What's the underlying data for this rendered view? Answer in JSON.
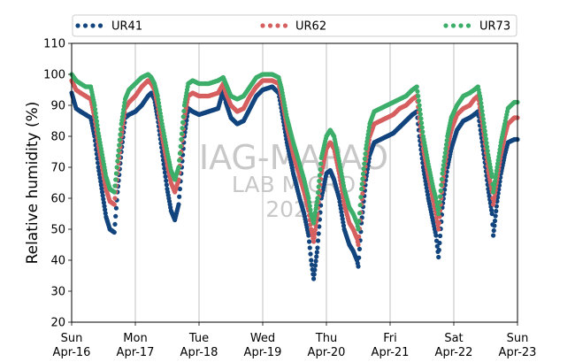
{
  "chart_data": {
    "type": "scatter",
    "ylabel": "Relative humidity (%)",
    "xlabel": "",
    "ylim": [
      20,
      110
    ],
    "yticks": [
      20,
      30,
      40,
      50,
      60,
      70,
      80,
      90,
      100,
      110
    ],
    "xlim": [
      0,
      7
    ],
    "xticks": [
      {
        "x": 0,
        "day": "Sun",
        "date": "Apr-16"
      },
      {
        "x": 1,
        "day": "Mon",
        "date": "Apr-17"
      },
      {
        "x": 2,
        "day": "Tue",
        "date": "Apr-18"
      },
      {
        "x": 3,
        "day": "Wed",
        "date": "Apr-19"
      },
      {
        "x": 4,
        "day": "Thu",
        "date": "Apr-20"
      },
      {
        "x": 5,
        "day": "Fri",
        "date": "Apr-21"
      },
      {
        "x": 6,
        "day": "Sat",
        "date": "Apr-22"
      },
      {
        "x": 7,
        "day": "Sun",
        "date": "Apr-23"
      }
    ],
    "grid": "vertical",
    "legend_position": "top",
    "watermark": [
      "IAG-MAPAO",
      "LAB MICRO",
      "2021"
    ],
    "series": [
      {
        "name": "UR41",
        "color": "#12457e",
        "points": [
          [
            0.0,
            94
          ],
          [
            0.07,
            89
          ],
          [
            0.14,
            88
          ],
          [
            0.22,
            87
          ],
          [
            0.3,
            86
          ],
          [
            0.36,
            80
          ],
          [
            0.42,
            70
          ],
          [
            0.48,
            62
          ],
          [
            0.54,
            54
          ],
          [
            0.6,
            50
          ],
          [
            0.67,
            49
          ],
          [
            0.72,
            62
          ],
          [
            0.78,
            75
          ],
          [
            0.84,
            86
          ],
          [
            0.9,
            87
          ],
          [
            1.0,
            88
          ],
          [
            1.1,
            90
          ],
          [
            1.2,
            93
          ],
          [
            1.25,
            94
          ],
          [
            1.3,
            92
          ],
          [
            1.35,
            86
          ],
          [
            1.42,
            75
          ],
          [
            1.5,
            63
          ],
          [
            1.56,
            56
          ],
          [
            1.62,
            53
          ],
          [
            1.68,
            58
          ],
          [
            1.72,
            68
          ],
          [
            1.77,
            80
          ],
          [
            1.83,
            89
          ],
          [
            1.9,
            88
          ],
          [
            2.0,
            87
          ],
          [
            2.15,
            88
          ],
          [
            2.3,
            89
          ],
          [
            2.38,
            95
          ],
          [
            2.42,
            91
          ],
          [
            2.5,
            86
          ],
          [
            2.6,
            84
          ],
          [
            2.7,
            85
          ],
          [
            2.8,
            89
          ],
          [
            2.9,
            93
          ],
          [
            3.0,
            95
          ],
          [
            3.15,
            96
          ],
          [
            3.25,
            94
          ],
          [
            3.3,
            88
          ],
          [
            3.38,
            78
          ],
          [
            3.48,
            68
          ],
          [
            3.58,
            60
          ],
          [
            3.65,
            55
          ],
          [
            3.72,
            48
          ],
          [
            3.76,
            40
          ],
          [
            3.8,
            34
          ],
          [
            3.86,
            44
          ],
          [
            3.92,
            60
          ],
          [
            4.0,
            68
          ],
          [
            4.06,
            69
          ],
          [
            4.12,
            66
          ],
          [
            4.2,
            60
          ],
          [
            4.28,
            50
          ],
          [
            4.36,
            45
          ],
          [
            4.42,
            43
          ],
          [
            4.48,
            40
          ],
          [
            4.5,
            38
          ],
          [
            4.55,
            52
          ],
          [
            4.62,
            66
          ],
          [
            4.68,
            74
          ],
          [
            4.75,
            78
          ],
          [
            4.85,
            79
          ],
          [
            4.95,
            80
          ],
          [
            5.05,
            81
          ],
          [
            5.15,
            83
          ],
          [
            5.25,
            85
          ],
          [
            5.35,
            87
          ],
          [
            5.42,
            88
          ],
          [
            5.46,
            80
          ],
          [
            5.52,
            70
          ],
          [
            5.6,
            60
          ],
          [
            5.68,
            52
          ],
          [
            5.72,
            48
          ],
          [
            5.76,
            41
          ],
          [
            5.82,
            57
          ],
          [
            5.9,
            70
          ],
          [
            5.96,
            76
          ],
          [
            6.05,
            82
          ],
          [
            6.15,
            85
          ],
          [
            6.25,
            86
          ],
          [
            6.32,
            87
          ],
          [
            6.38,
            88
          ],
          [
            6.42,
            82
          ],
          [
            6.48,
            73
          ],
          [
            6.54,
            63
          ],
          [
            6.6,
            55
          ],
          [
            6.62,
            48
          ],
          [
            6.68,
            59
          ],
          [
            6.74,
            68
          ],
          [
            6.8,
            74
          ],
          [
            6.85,
            78
          ],
          [
            6.95,
            79
          ],
          [
            7.0,
            79
          ]
        ]
      },
      {
        "name": "UR62",
        "color": "#d65f5f",
        "points": [
          [
            0.0,
            98
          ],
          [
            0.07,
            95
          ],
          [
            0.14,
            94
          ],
          [
            0.22,
            93
          ],
          [
            0.3,
            92
          ],
          [
            0.36,
            86
          ],
          [
            0.42,
            77
          ],
          [
            0.48,
            70
          ],
          [
            0.54,
            63
          ],
          [
            0.6,
            59
          ],
          [
            0.67,
            58
          ],
          [
            0.72,
            68
          ],
          [
            0.78,
            80
          ],
          [
            0.84,
            89
          ],
          [
            0.9,
            91
          ],
          [
            1.0,
            93
          ],
          [
            1.1,
            96
          ],
          [
            1.2,
            98
          ],
          [
            1.25,
            97
          ],
          [
            1.3,
            95
          ],
          [
            1.35,
            90
          ],
          [
            1.42,
            80
          ],
          [
            1.5,
            71
          ],
          [
            1.56,
            65
          ],
          [
            1.62,
            62
          ],
          [
            1.68,
            66
          ],
          [
            1.72,
            75
          ],
          [
            1.77,
            86
          ],
          [
            1.83,
            93
          ],
          [
            1.9,
            94
          ],
          [
            2.0,
            93
          ],
          [
            2.15,
            93
          ],
          [
            2.3,
            94
          ],
          [
            2.38,
            97
          ],
          [
            2.42,
            94
          ],
          [
            2.5,
            90
          ],
          [
            2.6,
            88
          ],
          [
            2.7,
            89
          ],
          [
            2.8,
            93
          ],
          [
            2.9,
            96
          ],
          [
            3.0,
            98
          ],
          [
            3.15,
            98
          ],
          [
            3.25,
            97
          ],
          [
            3.3,
            92
          ],
          [
            3.38,
            83
          ],
          [
            3.48,
            74
          ],
          [
            3.58,
            67
          ],
          [
            3.65,
            62
          ],
          [
            3.72,
            56
          ],
          [
            3.76,
            50
          ],
          [
            3.8,
            46
          ],
          [
            3.86,
            55
          ],
          [
            3.92,
            68
          ],
          [
            4.0,
            76
          ],
          [
            4.06,
            78
          ],
          [
            4.12,
            76
          ],
          [
            4.2,
            68
          ],
          [
            4.28,
            58
          ],
          [
            4.36,
            52
          ],
          [
            4.42,
            50
          ],
          [
            4.48,
            47
          ],
          [
            4.5,
            45
          ],
          [
            4.55,
            58
          ],
          [
            4.62,
            72
          ],
          [
            4.68,
            80
          ],
          [
            4.75,
            84
          ],
          [
            4.85,
            85
          ],
          [
            4.95,
            86
          ],
          [
            5.05,
            87
          ],
          [
            5.15,
            89
          ],
          [
            5.25,
            90
          ],
          [
            5.35,
            92
          ],
          [
            5.42,
            93
          ],
          [
            5.46,
            86
          ],
          [
            5.52,
            76
          ],
          [
            5.6,
            67
          ],
          [
            5.68,
            59
          ],
          [
            5.72,
            55
          ],
          [
            5.76,
            50
          ],
          [
            5.82,
            64
          ],
          [
            5.9,
            76
          ],
          [
            5.96,
            82
          ],
          [
            6.05,
            87
          ],
          [
            6.15,
            89
          ],
          [
            6.25,
            90
          ],
          [
            6.32,
            92
          ],
          [
            6.38,
            93
          ],
          [
            6.42,
            88
          ],
          [
            6.48,
            79
          ],
          [
            6.54,
            69
          ],
          [
            6.6,
            62
          ],
          [
            6.62,
            58
          ],
          [
            6.68,
            66
          ],
          [
            6.74,
            74
          ],
          [
            6.8,
            80
          ],
          [
            6.85,
            84
          ],
          [
            6.95,
            86
          ],
          [
            7.0,
            86
          ]
        ]
      },
      {
        "name": "UR73",
        "color": "#3cae6a",
        "points": [
          [
            0.0,
            100
          ],
          [
            0.07,
            98
          ],
          [
            0.14,
            97
          ],
          [
            0.22,
            96
          ],
          [
            0.3,
            96
          ],
          [
            0.36,
            90
          ],
          [
            0.42,
            81
          ],
          [
            0.48,
            74
          ],
          [
            0.54,
            67
          ],
          [
            0.6,
            63
          ],
          [
            0.67,
            62
          ],
          [
            0.72,
            72
          ],
          [
            0.78,
            84
          ],
          [
            0.84,
            92
          ],
          [
            0.9,
            95
          ],
          [
            1.0,
            97
          ],
          [
            1.1,
            99
          ],
          [
            1.2,
            100
          ],
          [
            1.25,
            99
          ],
          [
            1.3,
            97
          ],
          [
            1.35,
            93
          ],
          [
            1.42,
            84
          ],
          [
            1.5,
            75
          ],
          [
            1.56,
            69
          ],
          [
            1.62,
            66
          ],
          [
            1.68,
            70
          ],
          [
            1.72,
            79
          ],
          [
            1.77,
            90
          ],
          [
            1.83,
            97
          ],
          [
            1.9,
            98
          ],
          [
            2.0,
            97
          ],
          [
            2.15,
            97
          ],
          [
            2.3,
            98
          ],
          [
            2.38,
            99
          ],
          [
            2.42,
            97
          ],
          [
            2.5,
            93
          ],
          [
            2.6,
            92
          ],
          [
            2.7,
            93
          ],
          [
            2.8,
            96
          ],
          [
            2.9,
            99
          ],
          [
            3.0,
            100
          ],
          [
            3.15,
            100
          ],
          [
            3.25,
            99
          ],
          [
            3.3,
            95
          ],
          [
            3.38,
            86
          ],
          [
            3.48,
            78
          ],
          [
            3.58,
            71
          ],
          [
            3.65,
            66
          ],
          [
            3.72,
            60
          ],
          [
            3.76,
            55
          ],
          [
            3.8,
            52
          ],
          [
            3.86,
            60
          ],
          [
            3.92,
            73
          ],
          [
            4.0,
            80
          ],
          [
            4.06,
            82
          ],
          [
            4.12,
            80
          ],
          [
            4.2,
            72
          ],
          [
            4.28,
            63
          ],
          [
            4.36,
            57
          ],
          [
            4.42,
            55
          ],
          [
            4.48,
            52
          ],
          [
            4.5,
            50
          ],
          [
            4.55,
            63
          ],
          [
            4.62,
            76
          ],
          [
            4.68,
            84
          ],
          [
            4.75,
            88
          ],
          [
            4.85,
            89
          ],
          [
            4.95,
            90
          ],
          [
            5.05,
            91
          ],
          [
            5.15,
            92
          ],
          [
            5.25,
            93
          ],
          [
            5.35,
            95
          ],
          [
            5.42,
            96
          ],
          [
            5.46,
            90
          ],
          [
            5.52,
            80
          ],
          [
            5.6,
            71
          ],
          [
            5.68,
            63
          ],
          [
            5.72,
            60
          ],
          [
            5.76,
            55
          ],
          [
            5.82,
            68
          ],
          [
            5.9,
            80
          ],
          [
            5.96,
            86
          ],
          [
            6.05,
            90
          ],
          [
            6.15,
            93
          ],
          [
            6.25,
            94
          ],
          [
            6.32,
            95
          ],
          [
            6.38,
            96
          ],
          [
            6.42,
            92
          ],
          [
            6.48,
            83
          ],
          [
            6.54,
            74
          ],
          [
            6.6,
            67
          ],
          [
            6.62,
            62
          ],
          [
            6.68,
            70
          ],
          [
            6.74,
            78
          ],
          [
            6.8,
            84
          ],
          [
            6.85,
            89
          ],
          [
            6.95,
            91
          ],
          [
            7.0,
            91
          ]
        ]
      }
    ]
  }
}
